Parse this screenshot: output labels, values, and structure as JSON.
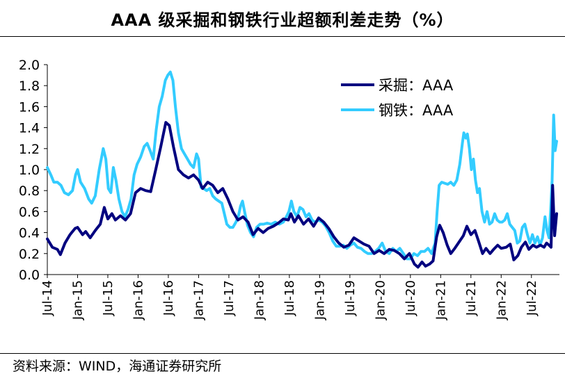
{
  "chart_data": {
    "type": "line",
    "title": "AAA 级采掘和钢铁行业超额利差走势（%）",
    "xlabel": "",
    "ylabel": "",
    "ylim": [
      0,
      2.0
    ],
    "yticks": [
      "0.0",
      "0.2",
      "0.4",
      "0.6",
      "0.8",
      "1.0",
      "1.2",
      "1.4",
      "1.6",
      "1.8",
      "2.0"
    ],
    "xlim": [
      0,
      101
    ],
    "xticks": [
      {
        "m": 0,
        "label": "Jul-14"
      },
      {
        "m": 6,
        "label": "Jan-15"
      },
      {
        "m": 12,
        "label": "Jul-15"
      },
      {
        "m": 18,
        "label": "Jan-16"
      },
      {
        "m": 24,
        "label": "Jul-16"
      },
      {
        "m": 30,
        "label": "Jan-17"
      },
      {
        "m": 36,
        "label": "Jul-17"
      },
      {
        "m": 42,
        "label": "Jan-18"
      },
      {
        "m": 48,
        "label": "Jul-18"
      },
      {
        "m": 54,
        "label": "Jan-19"
      },
      {
        "m": 60,
        "label": "Jul-19"
      },
      {
        "m": 66,
        "label": "Jan-20"
      },
      {
        "m": 72,
        "label": "Jul-20"
      },
      {
        "m": 78,
        "label": "Jan-21"
      },
      {
        "m": 84,
        "label": "Jul-21"
      },
      {
        "m": 90,
        "label": "Jan-22"
      },
      {
        "m": 96,
        "label": "Jul-22"
      }
    ],
    "legend_position": "top-right",
    "series": [
      {
        "name": "采掘：AAA",
        "color": "#00007f",
        "points": [
          [
            0,
            0.34
          ],
          [
            1,
            0.26
          ],
          [
            2,
            0.24
          ],
          [
            2.6,
            0.19
          ],
          [
            3.5,
            0.3
          ],
          [
            4.5,
            0.38
          ],
          [
            5.5,
            0.44
          ],
          [
            6,
            0.45
          ],
          [
            7,
            0.38
          ],
          [
            7.6,
            0.41
          ],
          [
            8.5,
            0.35
          ],
          [
            9.5,
            0.42
          ],
          [
            10.5,
            0.48
          ],
          [
            11.3,
            0.64
          ],
          [
            12,
            0.53
          ],
          [
            12.8,
            0.58
          ],
          [
            13.5,
            0.52
          ],
          [
            14.5,
            0.56
          ],
          [
            15.5,
            0.52
          ],
          [
            16.5,
            0.58
          ],
          [
            17.5,
            0.78
          ],
          [
            18.5,
            0.82
          ],
          [
            19.5,
            0.8
          ],
          [
            20.5,
            0.79
          ],
          [
            21.5,
            1.0
          ],
          [
            22.5,
            1.22
          ],
          [
            23.5,
            1.45
          ],
          [
            24.2,
            1.42
          ],
          [
            25,
            1.22
          ],
          [
            26,
            1.0
          ],
          [
            27,
            0.95
          ],
          [
            28,
            0.92
          ],
          [
            29,
            0.95
          ],
          [
            30,
            0.9
          ],
          [
            30.8,
            0.82
          ],
          [
            31.8,
            0.88
          ],
          [
            32.8,
            0.85
          ],
          [
            33.8,
            0.78
          ],
          [
            34.8,
            0.82
          ],
          [
            35.8,
            0.72
          ],
          [
            36.8,
            0.6
          ],
          [
            37.8,
            0.52
          ],
          [
            38.8,
            0.55
          ],
          [
            39.8,
            0.5
          ],
          [
            40.8,
            0.38
          ],
          [
            41.8,
            0.44
          ],
          [
            42.8,
            0.4
          ],
          [
            43.8,
            0.44
          ],
          [
            44.8,
            0.46
          ],
          [
            45.8,
            0.49
          ],
          [
            46.8,
            0.53
          ],
          [
            47.8,
            0.52
          ],
          [
            48.3,
            0.58
          ],
          [
            49,
            0.5
          ],
          [
            49.8,
            0.56
          ],
          [
            50.8,
            0.48
          ],
          [
            51.8,
            0.53
          ],
          [
            52.8,
            0.46
          ],
          [
            53.8,
            0.54
          ],
          [
            54.8,
            0.5
          ],
          [
            55.8,
            0.44
          ],
          [
            56.8,
            0.36
          ],
          [
            57.8,
            0.3
          ],
          [
            58.8,
            0.26
          ],
          [
            59.8,
            0.28
          ],
          [
            60.8,
            0.35
          ],
          [
            61.8,
            0.32
          ],
          [
            62.8,
            0.29
          ],
          [
            63.8,
            0.27
          ],
          [
            64.8,
            0.2
          ],
          [
            65.8,
            0.23
          ],
          [
            66.8,
            0.2
          ],
          [
            67.8,
            0.24
          ],
          [
            68.8,
            0.23
          ],
          [
            69.8,
            0.2
          ],
          [
            70.8,
            0.15
          ],
          [
            71.8,
            0.2
          ],
          [
            72.8,
            0.1
          ],
          [
            73.5,
            0.07
          ],
          [
            74.3,
            0.12
          ],
          [
            75,
            0.08
          ],
          [
            75.8,
            0.1
          ],
          [
            76.5,
            0.13
          ],
          [
            77.2,
            0.36
          ],
          [
            77.8,
            0.47
          ],
          [
            78.5,
            0.4
          ],
          [
            79.3,
            0.28
          ],
          [
            80,
            0.2
          ],
          [
            80.8,
            0.25
          ],
          [
            81.5,
            0.3
          ],
          [
            82.5,
            0.37
          ],
          [
            83.2,
            0.46
          ],
          [
            84,
            0.38
          ],
          [
            84.8,
            0.42
          ],
          [
            85.5,
            0.32
          ],
          [
            86.3,
            0.2
          ],
          [
            87,
            0.25
          ],
          [
            87.8,
            0.2
          ],
          [
            88.5,
            0.24
          ],
          [
            89.3,
            0.28
          ],
          [
            90,
            0.25
          ],
          [
            91,
            0.26
          ],
          [
            91.8,
            0.29
          ],
          [
            92.5,
            0.14
          ],
          [
            93.3,
            0.18
          ],
          [
            94,
            0.26
          ],
          [
            94.8,
            0.31
          ],
          [
            95.5,
            0.24
          ],
          [
            96.3,
            0.28
          ],
          [
            97,
            0.26
          ],
          [
            97.8,
            0.28
          ],
          [
            98.5,
            0.26
          ],
          [
            99,
            0.3
          ],
          [
            99.5,
            0.28
          ],
          [
            99.9,
            0.26
          ],
          [
            100.2,
            0.85
          ],
          [
            100.6,
            0.37
          ],
          [
            101,
            0.58
          ]
        ]
      },
      {
        "name": "钢铁：AAA",
        "color": "#33ccff",
        "points": [
          [
            0,
            1.02
          ],
          [
            0.7,
            0.95
          ],
          [
            1.3,
            0.88
          ],
          [
            2,
            0.88
          ],
          [
            2.7,
            0.85
          ],
          [
            3.4,
            0.78
          ],
          [
            4.2,
            0.76
          ],
          [
            5,
            0.8
          ],
          [
            5.6,
            0.95
          ],
          [
            6,
            1.0
          ],
          [
            6.6,
            0.88
          ],
          [
            7.4,
            0.82
          ],
          [
            8.2,
            0.72
          ],
          [
            8.8,
            0.68
          ],
          [
            9.5,
            0.75
          ],
          [
            10.3,
            1.0
          ],
          [
            11.1,
            1.2
          ],
          [
            11.6,
            1.1
          ],
          [
            12.1,
            0.82
          ],
          [
            12.6,
            0.78
          ],
          [
            13.1,
            1.02
          ],
          [
            13.6,
            0.9
          ],
          [
            14.2,
            0.72
          ],
          [
            14.8,
            0.6
          ],
          [
            15.4,
            0.55
          ],
          [
            16,
            0.62
          ],
          [
            16.6,
            0.72
          ],
          [
            17.2,
            0.95
          ],
          [
            17.8,
            1.05
          ],
          [
            18.5,
            1.12
          ],
          [
            19.2,
            1.22
          ],
          [
            19.8,
            1.25
          ],
          [
            20.4,
            1.18
          ],
          [
            21,
            1.1
          ],
          [
            21.6,
            1.38
          ],
          [
            22.2,
            1.6
          ],
          [
            22.8,
            1.7
          ],
          [
            23.4,
            1.85
          ],
          [
            23.9,
            1.9
          ],
          [
            24.4,
            1.93
          ],
          [
            24.9,
            1.85
          ],
          [
            25.4,
            1.6
          ],
          [
            26,
            1.35
          ],
          [
            26.6,
            1.2
          ],
          [
            27.2,
            1.15
          ],
          [
            27.8,
            1.1
          ],
          [
            28.4,
            1.05
          ],
          [
            29,
            1.02
          ],
          [
            29.6,
            1.15
          ],
          [
            30,
            1.1
          ],
          [
            30.5,
            0.83
          ],
          [
            31,
            0.82
          ],
          [
            31.6,
            0.8
          ],
          [
            32.2,
            0.82
          ],
          [
            32.8,
            0.75
          ],
          [
            33.4,
            0.72
          ],
          [
            34,
            0.7
          ],
          [
            34.6,
            0.68
          ],
          [
            35.1,
            0.58
          ],
          [
            35.6,
            0.48
          ],
          [
            36.2,
            0.45
          ],
          [
            36.8,
            0.45
          ],
          [
            37.4,
            0.5
          ],
          [
            37.9,
            0.56
          ],
          [
            38.3,
            0.65
          ],
          [
            38.7,
            0.7
          ],
          [
            39.2,
            0.58
          ],
          [
            39.7,
            0.47
          ],
          [
            40.3,
            0.4
          ],
          [
            40.9,
            0.36
          ],
          [
            41.5,
            0.45
          ],
          [
            42.2,
            0.48
          ],
          [
            42.9,
            0.48
          ],
          [
            43.6,
            0.49
          ],
          [
            44.4,
            0.48
          ],
          [
            45.2,
            0.5
          ],
          [
            46,
            0.48
          ],
          [
            46.8,
            0.5
          ],
          [
            47.4,
            0.55
          ],
          [
            47.9,
            0.6
          ],
          [
            48.4,
            0.7
          ],
          [
            48.9,
            0.6
          ],
          [
            49.5,
            0.55
          ],
          [
            50.1,
            0.64
          ],
          [
            50.7,
            0.62
          ],
          [
            51.3,
            0.55
          ],
          [
            51.9,
            0.58
          ],
          [
            52.5,
            0.52
          ],
          [
            53.1,
            0.5
          ],
          [
            53.8,
            0.52
          ],
          [
            54.5,
            0.5
          ],
          [
            55.2,
            0.46
          ],
          [
            55.9,
            0.4
          ],
          [
            56.6,
            0.32
          ],
          [
            57.3,
            0.27
          ],
          [
            58,
            0.27
          ],
          [
            58.7,
            0.28
          ],
          [
            59.4,
            0.25
          ],
          [
            60.1,
            0.28
          ],
          [
            60.8,
            0.3
          ],
          [
            61.5,
            0.26
          ],
          [
            62.2,
            0.25
          ],
          [
            62.9,
            0.22
          ],
          [
            63.6,
            0.2
          ],
          [
            64.3,
            0.2
          ],
          [
            65,
            0.22
          ],
          [
            65.7,
            0.25
          ],
          [
            66.4,
            0.3
          ],
          [
            67.1,
            0.22
          ],
          [
            67.8,
            0.2
          ],
          [
            68.5,
            0.25
          ],
          [
            69.2,
            0.22
          ],
          [
            69.9,
            0.25
          ],
          [
            70.6,
            0.2
          ],
          [
            71.3,
            0.15
          ],
          [
            72,
            0.15
          ],
          [
            72.7,
            0.2
          ],
          [
            73.4,
            0.18
          ],
          [
            74.1,
            0.22
          ],
          [
            74.8,
            0.22
          ],
          [
            75.5,
            0.25
          ],
          [
            76.2,
            0.2
          ],
          [
            76.9,
            0.3
          ],
          [
            77.3,
            0.6
          ],
          [
            77.7,
            0.85
          ],
          [
            78.2,
            0.88
          ],
          [
            78.8,
            0.87
          ],
          [
            79.4,
            0.86
          ],
          [
            80,
            0.88
          ],
          [
            80.6,
            0.85
          ],
          [
            81.2,
            0.9
          ],
          [
            81.8,
            1.05
          ],
          [
            82.3,
            1.25
          ],
          [
            82.6,
            1.35
          ],
          [
            83,
            1.3
          ],
          [
            83.3,
            1.34
          ],
          [
            83.7,
            1.2
          ],
          [
            84.1,
            1.0
          ],
          [
            84.5,
            1.1
          ],
          [
            84.9,
            0.9
          ],
          [
            85.3,
            0.78
          ],
          [
            85.7,
            0.82
          ],
          [
            86.2,
            0.6
          ],
          [
            86.7,
            0.5
          ],
          [
            87.2,
            0.6
          ],
          [
            87.7,
            0.48
          ],
          [
            88.2,
            0.5
          ],
          [
            88.7,
            0.58
          ],
          [
            89.2,
            0.52
          ],
          [
            89.7,
            0.5
          ],
          [
            90.2,
            0.5
          ],
          [
            90.7,
            0.52
          ],
          [
            91.2,
            0.58
          ],
          [
            91.7,
            0.48
          ],
          [
            92.2,
            0.45
          ],
          [
            92.7,
            0.42
          ],
          [
            93.2,
            0.3
          ],
          [
            93.7,
            0.32
          ],
          [
            94.2,
            0.45
          ],
          [
            94.7,
            0.48
          ],
          [
            95.2,
            0.38
          ],
          [
            95.7,
            0.3
          ],
          [
            96.2,
            0.38
          ],
          [
            96.7,
            0.3
          ],
          [
            97.2,
            0.36
          ],
          [
            97.7,
            0.28
          ],
          [
            98.2,
            0.35
          ],
          [
            98.7,
            0.55
          ],
          [
            99.1,
            0.42
          ],
          [
            99.5,
            0.35
          ],
          [
            99.8,
            0.6
          ],
          [
            100.1,
            0.9
          ],
          [
            100.4,
            1.52
          ],
          [
            100.7,
            1.18
          ],
          [
            101,
            1.27
          ]
        ]
      }
    ]
  },
  "source": "资料来源：WIND，海通证券研究所"
}
